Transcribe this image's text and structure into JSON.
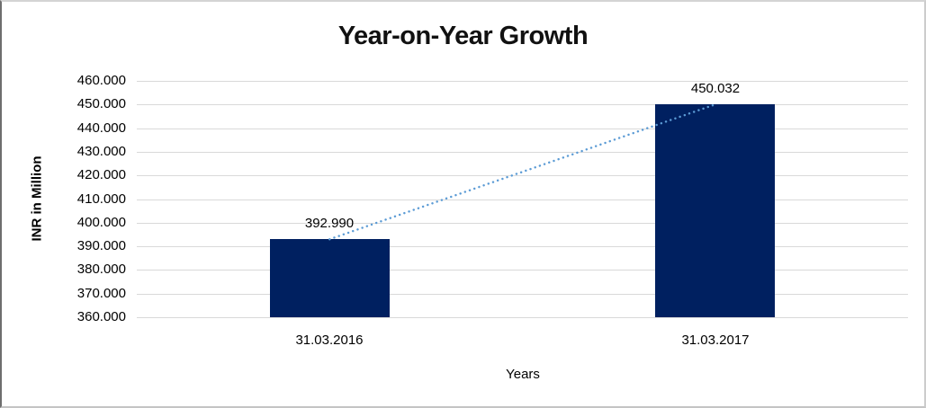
{
  "chart_data": {
    "type": "bar",
    "title": "Year-on-Year Growth",
    "xlabel": "Years",
    "ylabel": "INR in Million",
    "categories": [
      "31.03.2016",
      "31.03.2017"
    ],
    "values": [
      392.99,
      450.032
    ],
    "data_labels": [
      "392.990",
      "450.032"
    ],
    "ylim": [
      360,
      460
    ],
    "y_tick_step": 10,
    "y_tick_labels": [
      "460.000",
      "450.000",
      "440.000",
      "430.000",
      "420.000",
      "410.000",
      "400.000",
      "390.000",
      "380.000",
      "370.000",
      "360.000"
    ],
    "grid": true,
    "legend": false,
    "trendline": {
      "style": "dotted",
      "connects": [
        "31.03.2016",
        "31.03.2017"
      ]
    },
    "colors": {
      "bar": "#002060",
      "trendline": "#5B9BD5",
      "gridline": "#D9D9D9",
      "text": "#000000"
    }
  }
}
